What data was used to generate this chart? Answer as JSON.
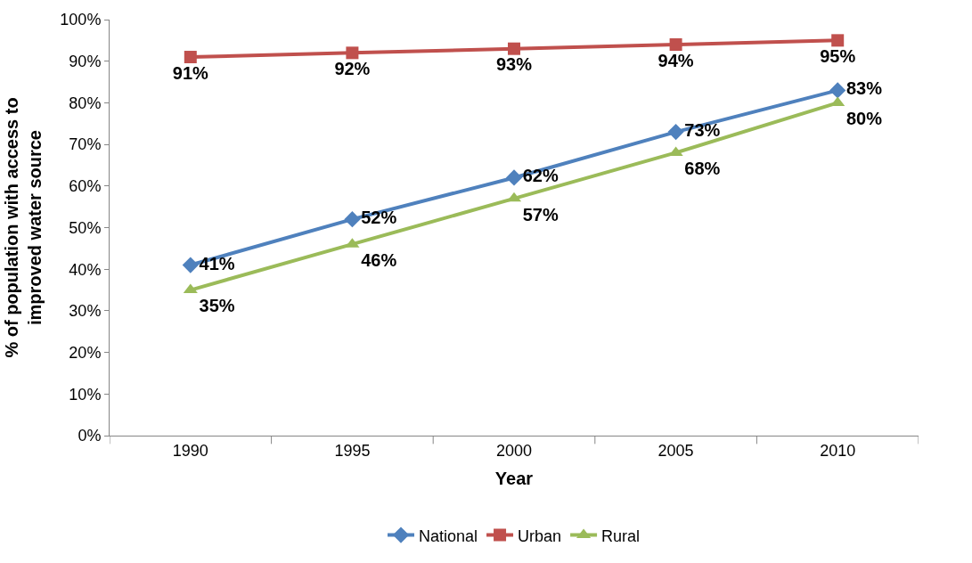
{
  "chart_data": {
    "type": "line",
    "xlabel": "Year",
    "ylabel": "% of population with access to improved water source",
    "categories": [
      "1990",
      "1995",
      "2000",
      "2005",
      "2010"
    ],
    "series": [
      {
        "name": "National",
        "color": "#4f81bd",
        "marker": "diamond",
        "values": [
          41,
          52,
          62,
          73,
          83
        ],
        "value_labels": [
          "41%",
          "52%",
          "62%",
          "73%",
          "83%"
        ]
      },
      {
        "name": "Urban",
        "color": "#c0504d",
        "marker": "square",
        "values": [
          91,
          92,
          93,
          94,
          95
        ],
        "value_labels": [
          "91%",
          "92%",
          "93%",
          "94%",
          "95%"
        ]
      },
      {
        "name": "Rural",
        "color": "#9bbb59",
        "marker": "triangle",
        "values": [
          35,
          46,
          57,
          68,
          80
        ],
        "value_labels": [
          "35%",
          "46%",
          "57%",
          "68%",
          "80%"
        ]
      }
    ],
    "ylim": [
      0,
      100
    ],
    "yticks": [
      {
        "value": 0,
        "label": "0%"
      },
      {
        "value": 10,
        "label": "10%"
      },
      {
        "value": 20,
        "label": "20%"
      },
      {
        "value": 30,
        "label": "30%"
      },
      {
        "value": 40,
        "label": "40%"
      },
      {
        "value": 50,
        "label": "50%"
      },
      {
        "value": 60,
        "label": "60%"
      },
      {
        "value": 70,
        "label": "70%"
      },
      {
        "value": 80,
        "label": "80%"
      },
      {
        "value": 90,
        "label": "90%"
      },
      {
        "value": 100,
        "label": "100%"
      }
    ],
    "legend": "bottom",
    "line_style": "solid"
  }
}
